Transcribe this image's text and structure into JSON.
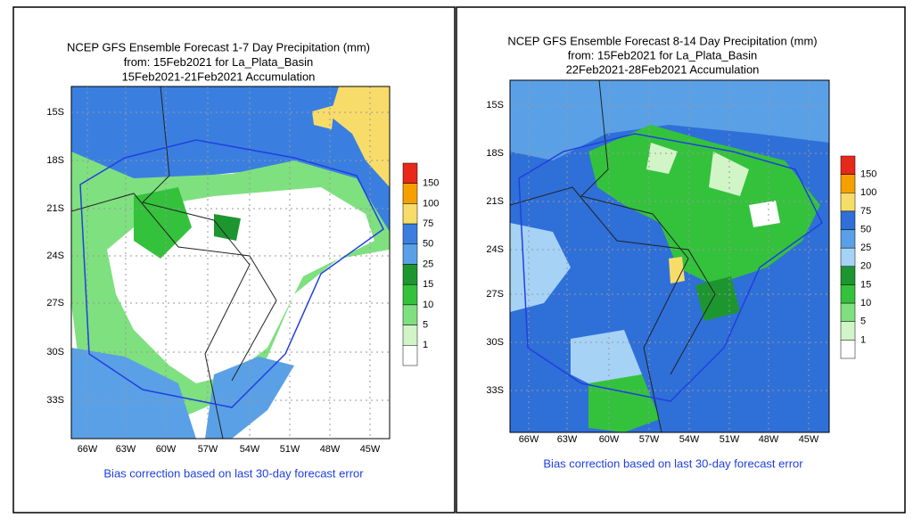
{
  "panels": [
    {
      "title": [
        "NCEP GFS Ensemble Forecast 1-7 Day Precipitation (mm)",
        "from: 15Feb2021   for La_Plata_Basin",
        "15Feb2021-21Feb2021 Accumulation"
      ],
      "lat_labels": [
        "15S",
        "18S",
        "21S",
        "24S",
        "27S",
        "30S",
        "33S"
      ],
      "lon_labels": [
        "66W",
        "63W",
        "60W",
        "57W",
        "54W",
        "51W",
        "48W",
        "45W"
      ],
      "legend": [
        {
          "label": "150",
          "color": "#e8281a"
        },
        {
          "label": "100",
          "color": "#f5a000"
        },
        {
          "label": "75",
          "color": "#f8dc6a"
        },
        {
          "label": "50",
          "color": "#3a7fe0"
        },
        {
          "label": "25",
          "color": "#5aa0e6"
        },
        {
          "label": "15",
          "color": "#1e9630"
        },
        {
          "label": "10",
          "color": "#34c23c"
        },
        {
          "label": "5",
          "color": "#7fe07f"
        },
        {
          "label": "1",
          "color": "#d2f5c8"
        }
      ],
      "note": "Bias correction based on last 30-day forecast error"
    },
    {
      "title": [
        "NCEP GFS Ensemble Forecast 8-14 Day Precipitation (mm)",
        "from: 15Feb2021   for La_Plata_Basin",
        "22Feb2021-28Feb2021 Accumulation"
      ],
      "lat_labels": [
        "15S",
        "18S",
        "21S",
        "24S",
        "27S",
        "30S",
        "33S"
      ],
      "lon_labels": [
        "66W",
        "63W",
        "60W",
        "57W",
        "54W",
        "51W",
        "48W",
        "45W"
      ],
      "legend": [
        {
          "label": "150",
          "color": "#e8281a"
        },
        {
          "label": "100",
          "color": "#f5a000"
        },
        {
          "label": "75",
          "color": "#f8dc6a"
        },
        {
          "label": "50",
          "color": "#2f6fd8"
        },
        {
          "label": "25",
          "color": "#5aa0e6"
        },
        {
          "label": "20",
          "color": "#a6d2f5"
        },
        {
          "label": "15",
          "color": "#1e9630"
        },
        {
          "label": "10",
          "color": "#34c23c"
        },
        {
          "label": "5",
          "color": "#7fe07f"
        },
        {
          "label": "1",
          "color": "#d2f5c8"
        }
      ],
      "note": "Bias correction based on last 30-day forecast error"
    }
  ]
}
